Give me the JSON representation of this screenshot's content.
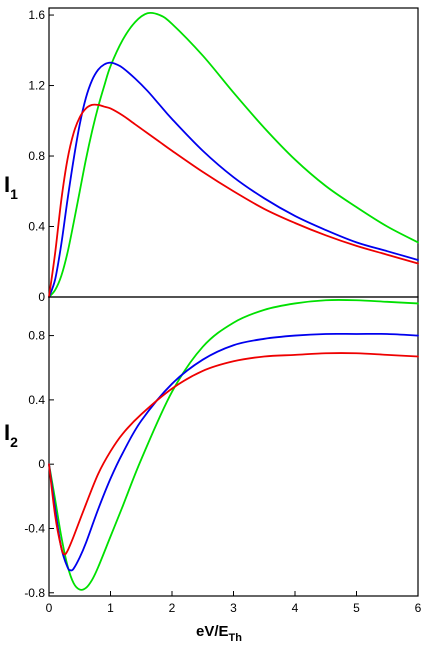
{
  "chart_data": [
    {
      "type": "line",
      "ylabel_main": "I",
      "ylabel_sub": "1",
      "xlim": [
        0,
        6
      ],
      "ylim": [
        0,
        1.64
      ],
      "yticks": [
        0,
        0.4,
        0.8,
        1.2,
        1.6
      ],
      "ytick_labels": [
        "0",
        "0.4",
        "0.8",
        "1.2",
        "1.6"
      ],
      "grid": false,
      "series": [
        {
          "color": "#00e000",
          "x": [
            0,
            0.1,
            0.2,
            0.3,
            0.4,
            0.5,
            0.6,
            0.7,
            0.8,
            0.9,
            1.0,
            1.2,
            1.4,
            1.6,
            1.8,
            2.0,
            2.5,
            3.0,
            3.5,
            4.0,
            4.5,
            5.0,
            5.5,
            6.0
          ],
          "y": [
            0,
            0.04,
            0.12,
            0.25,
            0.42,
            0.6,
            0.78,
            0.94,
            1.08,
            1.2,
            1.31,
            1.46,
            1.56,
            1.61,
            1.6,
            1.55,
            1.37,
            1.16,
            0.96,
            0.78,
            0.63,
            0.51,
            0.4,
            0.31
          ]
        },
        {
          "color": "#0000ee",
          "x": [
            0,
            0.1,
            0.2,
            0.3,
            0.4,
            0.5,
            0.6,
            0.7,
            0.8,
            0.9,
            1.0,
            1.1,
            1.2,
            1.4,
            1.6,
            1.8,
            2.0,
            2.5,
            3.0,
            3.5,
            4.0,
            4.5,
            5.0,
            5.5,
            6.0
          ],
          "y": [
            0,
            0.1,
            0.3,
            0.55,
            0.78,
            0.98,
            1.13,
            1.23,
            1.29,
            1.32,
            1.33,
            1.32,
            1.3,
            1.24,
            1.17,
            1.09,
            1.01,
            0.83,
            0.68,
            0.56,
            0.46,
            0.38,
            0.31,
            0.26,
            0.21
          ]
        },
        {
          "color": "#ee0000",
          "x": [
            0,
            0.1,
            0.2,
            0.3,
            0.4,
            0.5,
            0.6,
            0.7,
            0.8,
            0.9,
            1.0,
            1.2,
            1.4,
            1.6,
            1.8,
            2.0,
            2.5,
            3.0,
            3.5,
            4.0,
            4.5,
            5.0,
            5.5,
            6.0
          ],
          "y": [
            0,
            0.25,
            0.55,
            0.78,
            0.93,
            1.02,
            1.07,
            1.09,
            1.09,
            1.08,
            1.07,
            1.03,
            0.98,
            0.93,
            0.88,
            0.83,
            0.71,
            0.6,
            0.5,
            0.42,
            0.35,
            0.29,
            0.24,
            0.19
          ]
        }
      ]
    },
    {
      "type": "line",
      "ylabel_main": "I",
      "ylabel_sub": "2",
      "xlabel_main": "eV/E",
      "xlabel_sub": "Th",
      "xlim": [
        0,
        6
      ],
      "ylim": [
        -0.82,
        1.04
      ],
      "xticks": [
        0,
        1,
        2,
        3,
        4,
        5,
        6
      ],
      "xtick_labels": [
        "0",
        "1",
        "2",
        "3",
        "4",
        "5",
        "6"
      ],
      "yticks": [
        -0.8,
        -0.4,
        0,
        0.4,
        0.8
      ],
      "ytick_labels": [
        "-0.8",
        "-0.4",
        "0",
        "0.4",
        "0.8"
      ],
      "grid": false,
      "series": [
        {
          "color": "#00e000",
          "x": [
            0,
            0.1,
            0.2,
            0.3,
            0.4,
            0.5,
            0.6,
            0.7,
            0.8,
            1.0,
            1.2,
            1.5,
            2.0,
            2.5,
            3.0,
            3.5,
            4.0,
            4.5,
            5.0,
            5.5,
            6.0
          ],
          "y": [
            0,
            -0.22,
            -0.45,
            -0.63,
            -0.74,
            -0.78,
            -0.77,
            -0.72,
            -0.64,
            -0.45,
            -0.26,
            0.03,
            0.45,
            0.73,
            0.88,
            0.96,
            1.0,
            1.02,
            1.02,
            1.01,
            1.0
          ]
        },
        {
          "color": "#0000ee",
          "x": [
            0,
            0.1,
            0.2,
            0.3,
            0.35,
            0.4,
            0.5,
            0.6,
            0.8,
            1.0,
            1.2,
            1.5,
            2.0,
            2.5,
            3.0,
            3.5,
            4.0,
            4.5,
            5.0,
            5.5,
            6.0
          ],
          "y": [
            0,
            -0.28,
            -0.52,
            -0.64,
            -0.66,
            -0.65,
            -0.58,
            -0.49,
            -0.28,
            -0.09,
            0.07,
            0.27,
            0.5,
            0.65,
            0.74,
            0.78,
            0.8,
            0.81,
            0.81,
            0.81,
            0.8
          ]
        },
        {
          "color": "#ee0000",
          "x": [
            0,
            0.1,
            0.2,
            0.25,
            0.3,
            0.4,
            0.6,
            0.8,
            1.0,
            1.2,
            1.5,
            2.0,
            2.5,
            3.0,
            3.5,
            4.0,
            4.5,
            5.0,
            5.5,
            6.0
          ],
          "y": [
            0,
            -0.32,
            -0.52,
            -0.56,
            -0.54,
            -0.45,
            -0.25,
            -0.06,
            0.08,
            0.19,
            0.31,
            0.47,
            0.58,
            0.64,
            0.67,
            0.68,
            0.69,
            0.69,
            0.68,
            0.67
          ]
        }
      ]
    }
  ]
}
